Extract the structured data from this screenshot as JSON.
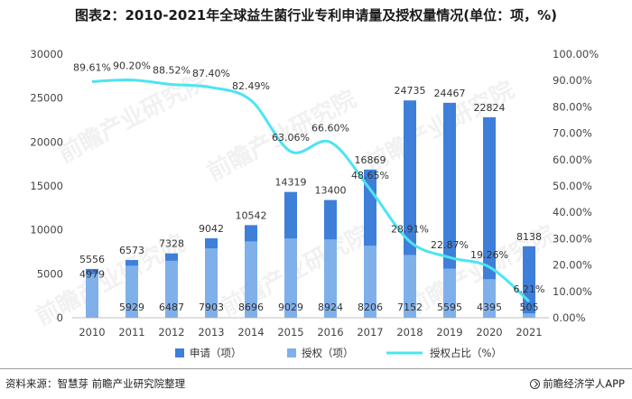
{
  "title": "图表2：2010-2021年全球益生菌行业专利申请量及授权量情况(单位：项，%)",
  "chart_data": {
    "type": "bar+line",
    "categories": [
      "2010",
      "2011",
      "2012",
      "2013",
      "2014",
      "2015",
      "2016",
      "2017",
      "2018",
      "2019",
      "2020",
      "2021"
    ],
    "series": [
      {
        "name": "申请（项）",
        "type": "bar",
        "axis": "left",
        "color": "#3e7fd9",
        "values": [
          5556,
          6573,
          7328,
          9042,
          10542,
          14319,
          13400,
          16869,
          24735,
          24467,
          22824,
          8138
        ]
      },
      {
        "name": "授权（项）",
        "type": "bar",
        "axis": "left",
        "color": "#7fb0ea",
        "values": [
          4979,
          5929,
          6487,
          7903,
          8696,
          9029,
          8924,
          8206,
          7152,
          5595,
          4395,
          505
        ]
      },
      {
        "name": "授权占比（%）",
        "type": "line",
        "axis": "right",
        "color": "#4de4f2",
        "values": [
          89.61,
          90.2,
          88.52,
          87.4,
          82.49,
          63.06,
          66.6,
          48.65,
          28.91,
          22.87,
          19.26,
          6.21
        ],
        "labels": [
          "89.61%",
          "90.20%",
          "88.52%",
          "87.40%",
          "82.49%",
          "63.06%",
          "66.60%",
          "48.65%",
          "28.91%",
          "22.87%",
          "19.26%",
          "6.21%"
        ]
      }
    ],
    "left_axis": {
      "min": 0,
      "max": 30000,
      "ticks": [
        "0",
        "5000",
        "10000",
        "15000",
        "20000",
        "25000",
        "30000"
      ]
    },
    "right_axis": {
      "min": 0,
      "max": 100,
      "ticks": [
        "0.00%",
        "10.00%",
        "20.00%",
        "30.00%",
        "40.00%",
        "50.00%",
        "60.00%",
        "70.00%",
        "80.00%",
        "90.00%",
        "100.00%"
      ]
    },
    "legend_position": "bottom",
    "grid": false
  },
  "source": "资料来源：智慧芽 前瞻产业研究院整理",
  "brand": "前瞻经济学人APP",
  "watermark": "前瞻产业研究院"
}
